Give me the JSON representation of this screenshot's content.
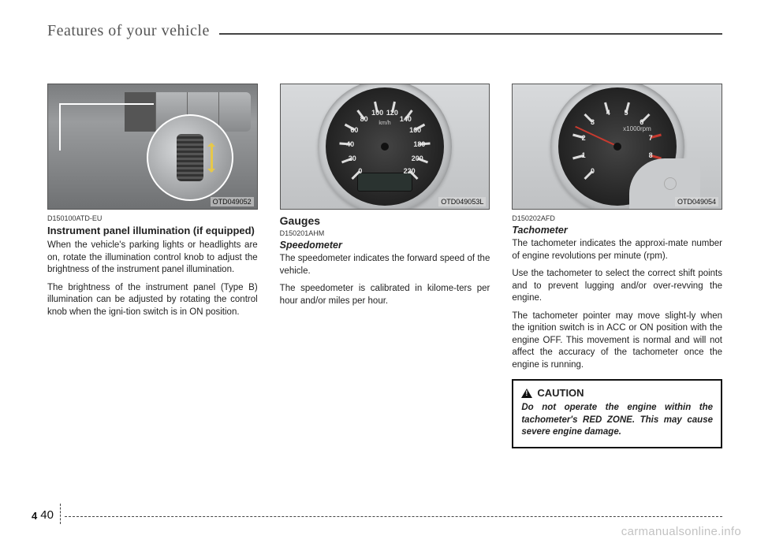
{
  "header": {
    "title": "Features of your vehicle"
  },
  "figures": {
    "f1": {
      "caption": "OTD049052"
    },
    "f2": {
      "caption": "OTD049053L"
    },
    "f3": {
      "caption": "OTD049054"
    }
  },
  "speedo": {
    "ticks": [
      0,
      20,
      40,
      60,
      80,
      100,
      120,
      140,
      160,
      180,
      200,
      220
    ],
    "unit_top": "km/h",
    "unit_mid": "MPH",
    "mph": [
      0,
      20,
      40,
      60,
      80,
      100,
      120
    ]
  },
  "tach": {
    "ticks": [
      0,
      1,
      2,
      3,
      4,
      5,
      6,
      7,
      8
    ],
    "label": "x1000rpm"
  },
  "col1": {
    "code": "D150100ATD-EU",
    "heading": "Instrument panel illumination (if equipped)",
    "p1": "When the vehicle's parking lights or headlights are on, rotate the illumination control knob to adjust the brightness of the instrument panel illumination.",
    "p2": "The brightness of the instrument panel (Type B) illumination can be adjusted by rotating the control knob when the igni-tion switch is in ON position."
  },
  "col2": {
    "section": "Gauges",
    "code": "D150201AHM",
    "heading": "Speedometer",
    "p1": "The speedometer indicates the forward speed of the vehicle.",
    "p2": "The speedometer is calibrated in kilome-ters per hour and/or miles per hour."
  },
  "col3": {
    "code": "D150202AFD",
    "heading": "Tachometer",
    "p1": "The tachometer indicates the approxi-mate number of engine revolutions per minute (rpm).",
    "p2": "Use the tachometer to select the correct shift points and to prevent lugging and/or over-revving the engine.",
    "p3": "The tachometer pointer may move slight-ly when the ignition switch is in ACC or ON position with the engine OFF. This movement is normal and will not affect the accuracy of the tachometer once the engine is running."
  },
  "caution": {
    "title": "CAUTION",
    "body": "Do not operate the engine within the tachometer's RED ZONE. This may cause severe engine damage."
  },
  "footer": {
    "chapter": "4",
    "page": "40"
  },
  "watermark": "carmanualsonline.info"
}
